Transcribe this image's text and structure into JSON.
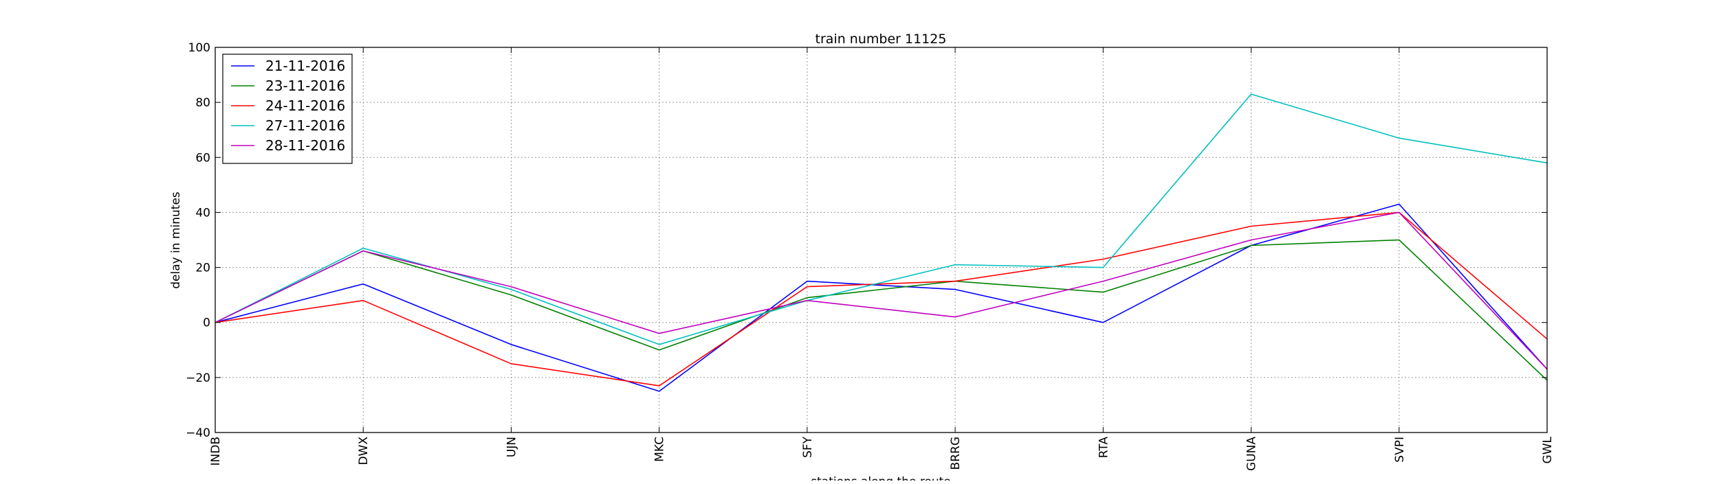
{
  "chart_data": {
    "type": "line",
    "title": "train number 11125",
    "xlabel": "stations along the route",
    "ylabel": "delay in minutes",
    "categories": [
      "INDB",
      "DWX",
      "UJN",
      "MKC",
      "SFY",
      "BRRG",
      "RTA",
      "GUNA",
      "SVPI",
      "GWL"
    ],
    "ylim": [
      -40,
      100
    ],
    "yticks": [
      -40,
      -20,
      0,
      20,
      40,
      60,
      80,
      100
    ],
    "ytick_labels": [
      "−40",
      "−20",
      "0",
      "20",
      "40",
      "60",
      "80",
      "100"
    ],
    "grid": true,
    "legend_position": "top-left",
    "series": [
      {
        "name": "21-11-2016",
        "color": "#0000ff",
        "values": [
          0,
          14,
          -8,
          -25,
          15,
          12,
          0,
          28,
          43,
          -17
        ]
      },
      {
        "name": "23-11-2016",
        "color": "#008000",
        "values": [
          0,
          26,
          10,
          -10,
          9,
          15,
          11,
          28,
          30,
          -21
        ]
      },
      {
        "name": "24-11-2016",
        "color": "#ff0000",
        "values": [
          0,
          8,
          -15,
          -23,
          13,
          15,
          23,
          35,
          40,
          -6
        ]
      },
      {
        "name": "27-11-2016",
        "color": "#00bfbf",
        "values": [
          0,
          27,
          12,
          -8,
          8,
          21,
          20,
          83,
          67,
          58
        ]
      },
      {
        "name": "28-11-2016",
        "color": "#bf00bf",
        "values": [
          0,
          26,
          13,
          -4,
          8,
          2,
          15,
          30,
          40,
          -17
        ]
      }
    ]
  }
}
